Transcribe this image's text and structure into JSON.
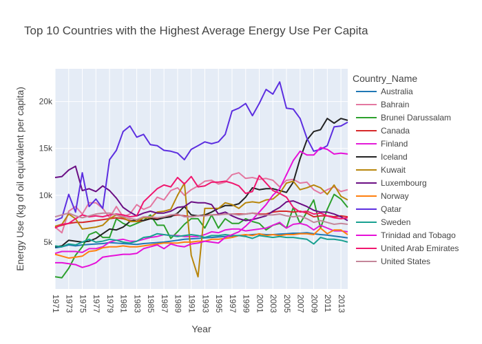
{
  "chart_data": {
    "type": "line",
    "title": "Top 10 Countries with the Highest Average Energy Use Per Capita",
    "xlabel": "Year",
    "ylabel": "Energy Use (kg of oil equivalent per capita)",
    "legend_title": "Country_Name",
    "legend_position": "right",
    "grid": true,
    "xlim": [
      1971,
      2014
    ],
    "ylim": [
      0,
      23500
    ],
    "x_ticks": [
      1971,
      1973,
      1975,
      1977,
      1979,
      1981,
      1983,
      1985,
      1987,
      1989,
      1991,
      1993,
      1995,
      1997,
      1999,
      2001,
      2003,
      2005,
      2007,
      2009,
      2011,
      2013
    ],
    "y_ticks": [
      5000,
      10000,
      15000,
      20000
    ],
    "y_tick_labels": [
      "5k",
      "10k",
      "15k",
      "20k"
    ],
    "x": [
      1971,
      1972,
      1973,
      1974,
      1975,
      1976,
      1977,
      1978,
      1979,
      1980,
      1981,
      1982,
      1983,
      1984,
      1985,
      1986,
      1987,
      1988,
      1989,
      1990,
      1991,
      1992,
      1993,
      1994,
      1995,
      1996,
      1997,
      1998,
      1999,
      2000,
      2001,
      2002,
      2003,
      2004,
      2005,
      2006,
      2007,
      2008,
      2009,
      2010,
      2011,
      2012,
      2013,
      2014
    ],
    "series": [
      {
        "name": "Australia",
        "color": "#1f77b4",
        "values": [
          4400,
          4500,
          4700,
          4600,
          4700,
          4750,
          4800,
          4850,
          4950,
          4900,
          4850,
          4800,
          4750,
          4850,
          4900,
          4950,
          5000,
          5100,
          5200,
          5300,
          5350,
          5400,
          5450,
          5500,
          5550,
          5600,
          5650,
          5700,
          5750,
          5800,
          5850,
          5800,
          5800,
          5850,
          5900,
          5950,
          5950,
          6000,
          5900,
          5800,
          5750,
          5650,
          5550,
          5450
        ]
      },
      {
        "name": "Bahrain",
        "color": "#e377a0",
        "values": [
          6600,
          6000,
          8300,
          8800,
          8000,
          9200,
          9200,
          8600,
          7600,
          8800,
          7700,
          8000,
          9000,
          8500,
          8800,
          9800,
          9500,
          10500,
          10800,
          10000,
          10600,
          11000,
          11500,
          11600,
          11200,
          11400,
          12200,
          12400,
          11800,
          11900,
          11700,
          11800,
          11600,
          10900,
          11600,
          11700,
          11300,
          11400,
          10600,
          10200,
          10600,
          10900,
          10400,
          10600
        ]
      },
      {
        "name": "Brunei Darussalam",
        "color": "#2ca02c",
        "values": [
          1300,
          1200,
          2200,
          3600,
          4500,
          5800,
          6100,
          5500,
          5500,
          7500,
          7000,
          6700,
          7000,
          7300,
          7900,
          6800,
          6800,
          5400,
          6100,
          6900,
          7500,
          7500,
          6500,
          7900,
          6500,
          7500,
          7000,
          7000,
          7500,
          7200,
          7000,
          6300,
          6800,
          7000,
          6500,
          8700,
          7000,
          8200,
          9500,
          6500,
          8500,
          10100,
          9600,
          8700
        ]
      },
      {
        "name": "Canada",
        "color": "#d62728",
        "values": [
          6600,
          6800,
          7000,
          7100,
          7100,
          7200,
          7300,
          7400,
          7500,
          7600,
          7500,
          7300,
          7200,
          7300,
          7500,
          7500,
          7700,
          7800,
          7900,
          7800,
          7700,
          7800,
          7900,
          7900,
          7950,
          8000,
          8000,
          8000,
          8000,
          8100,
          8000,
          8000,
          8200,
          8300,
          8300,
          8200,
          8300,
          8100,
          7700,
          7800,
          7800,
          7700,
          7800,
          7700
        ]
      },
      {
        "name": "Finland",
        "color": "#e31ad8",
        "values": [
          3800,
          4000,
          4000,
          4000,
          3900,
          4300,
          4300,
          4500,
          5000,
          5200,
          5300,
          5100,
          5100,
          5300,
          5500,
          5600,
          5800,
          5700,
          5700,
          5600,
          5600,
          5600,
          5800,
          6100,
          6000,
          6300,
          6400,
          6400,
          6200,
          6300,
          6400,
          6500,
          6800,
          7100,
          6500,
          6900,
          7000,
          6800,
          6300,
          6800,
          6500,
          6200,
          6200,
          6100
        ]
      },
      {
        "name": "Iceland",
        "color": "#222222",
        "values": [
          4500,
          4600,
          5200,
          5100,
          5000,
          5100,
          5400,
          5900,
          6400,
          6300,
          6600,
          7200,
          7400,
          7300,
          7500,
          7400,
          7600,
          7700,
          8100,
          8800,
          7900,
          7800,
          7900,
          8200,
          8600,
          8900,
          8900,
          9100,
          9800,
          10800,
          10600,
          10700,
          10700,
          10500,
          10300,
          11400,
          13900,
          15900,
          16800,
          17000,
          18200,
          17700,
          18200,
          18000
        ]
      },
      {
        "name": "Kuwait",
        "color": "#b8860b",
        "values": [
          6700,
          6900,
          8000,
          7500,
          6400,
          6500,
          6600,
          6800,
          7500,
          7900,
          7600,
          7200,
          7200,
          7600,
          7600,
          8200,
          8300,
          8500,
          10000,
          11300,
          3600,
          1300,
          8600,
          8600,
          8600,
          9200,
          9000,
          8600,
          9200,
          9300,
          9200,
          9500,
          9600,
          10200,
          11300,
          11500,
          10600,
          10800,
          11100,
          10800,
          10100,
          11100,
          9900,
          9500
        ]
      },
      {
        "name": "Luxembourg",
        "color": "#6a0d83",
        "values": [
          11900,
          12000,
          12700,
          13100,
          10500,
          10700,
          10400,
          11000,
          10500,
          9700,
          8700,
          8200,
          7800,
          8100,
          8300,
          8100,
          8100,
          8300,
          8700,
          8800,
          9300,
          9200,
          9200,
          9000,
          8000,
          8200,
          7800,
          7500,
          7300,
          7400,
          7600,
          7800,
          8300,
          8700,
          9300,
          9400,
          9100,
          8800,
          8400,
          8200,
          8200,
          8000,
          7700,
          7300
        ]
      },
      {
        "name": "Norway",
        "color": "#ff7f0e",
        "values": [
          3700,
          3500,
          3300,
          3400,
          3500,
          4000,
          4100,
          4400,
          4500,
          4500,
          4600,
          4500,
          4500,
          4600,
          4700,
          4800,
          4900,
          4900,
          4900,
          5000,
          5000,
          5100,
          5100,
          5300,
          5300,
          5400,
          5500,
          5700,
          5800,
          5700,
          5900,
          5700,
          5800,
          5700,
          5800,
          5800,
          5900,
          5900,
          5800,
          6500,
          5900,
          6300,
          6300,
          5800
        ]
      },
      {
        "name": "Qatar",
        "color": "#5c2ee0",
        "values": [
          7300,
          7600,
          10100,
          8200,
          12400,
          8800,
          9600,
          8600,
          13800,
          14800,
          16800,
          17400,
          16200,
          16500,
          15400,
          15300,
          14800,
          14700,
          14500,
          13800,
          14900,
          15300,
          15700,
          15500,
          15700,
          16500,
          19000,
          19300,
          19800,
          18500,
          19800,
          21300,
          20800,
          22100,
          19300,
          19200,
          18200,
          16100,
          14700,
          14900,
          15300,
          17300,
          17400,
          17800
        ]
      },
      {
        "name": "Sweden",
        "color": "#17a090",
        "values": [
          4600,
          4500,
          4800,
          4700,
          5000,
          5300,
          5000,
          5100,
          5300,
          5200,
          5000,
          4900,
          5100,
          5500,
          5600,
          5900,
          5800,
          5700,
          5600,
          5700,
          5800,
          5700,
          5500,
          5700,
          5700,
          5800,
          5700,
          5700,
          5600,
          5400,
          5700,
          5600,
          5500,
          5600,
          5500,
          5500,
          5400,
          5300,
          4800,
          5500,
          5300,
          5300,
          5200,
          5000
        ]
      },
      {
        "name": "Trinidad and Tobago",
        "color": "#e60fd8",
        "values": [
          2800,
          2800,
          2700,
          2600,
          2300,
          2500,
          2800,
          3400,
          3500,
          3600,
          3700,
          3700,
          3800,
          4300,
          4500,
          4700,
          4300,
          4800,
          4600,
          4500,
          4800,
          4900,
          5100,
          5000,
          4900,
          5500,
          5800,
          6100,
          6700,
          7400,
          8200,
          9000,
          10000,
          10700,
          12200,
          13700,
          14700,
          14300,
          14300,
          15100,
          14900,
          14400,
          14500,
          14400
        ]
      },
      {
        "name": "United Arab Emirates",
        "color": "#f0166e",
        "values": [
          6500,
          6900,
          7000,
          7500,
          7900,
          7700,
          7800,
          7700,
          7900,
          8000,
          7900,
          7700,
          7800,
          9300,
          10000,
          10700,
          11100,
          10900,
          11900,
          11200,
          12000,
          10900,
          11000,
          11400,
          11400,
          11500,
          11300,
          11000,
          10200,
          10400,
          12100,
          11300,
          10500,
          10200,
          9800,
          8700,
          8200,
          8300,
          8000,
          8100,
          7800,
          7600,
          7500,
          7600
        ]
      },
      {
        "name": "United States",
        "color": "#c4869a",
        "values": [
          7700,
          7900,
          8100,
          7800,
          7600,
          7800,
          8000,
          8100,
          8100,
          7900,
          7700,
          7500,
          7400,
          7700,
          7700,
          7600,
          7700,
          7900,
          8000,
          7700,
          7700,
          7800,
          7800,
          7900,
          7900,
          8000,
          8000,
          7900,
          8000,
          8100,
          7900,
          7900,
          7900,
          8000,
          7800,
          7700,
          7800,
          7500,
          7100,
          7300,
          7100,
          6900,
          7000,
          6900
        ]
      }
    ]
  }
}
